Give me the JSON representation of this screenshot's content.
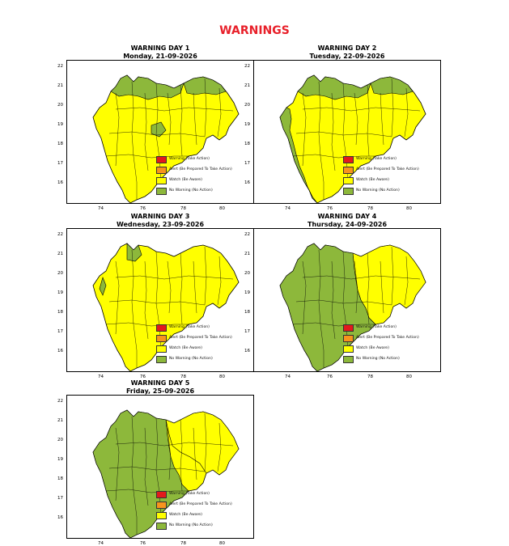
{
  "page_title": "WARNINGS",
  "colors": {
    "title": "#e8202a",
    "warning": "#e31a1c",
    "alert": "#f7941d",
    "watch": "#ffff00",
    "no_warning": "#8db83b"
  },
  "legend": [
    {
      "label": "Warning (Take Action)",
      "color": "#e31a1c"
    },
    {
      "label": "Alert (Be Prepared To Take Action)",
      "color": "#f7941d"
    },
    {
      "label": "Watch (Be Aware)",
      "color": "#ffff00"
    },
    {
      "label": "No Warning (No Action)",
      "color": "#8db83b"
    }
  ],
  "axes": {
    "y_ticks": [
      "22",
      "21",
      "20",
      "19",
      "18",
      "17",
      "16"
    ],
    "x_ticks": [
      "74",
      "76",
      "78",
      "80"
    ]
  },
  "panels": [
    {
      "title": "WARNING DAY 1",
      "date": "Monday, 21-09-2026"
    },
    {
      "title": "WARNING DAY 2",
      "date": "Tuesday, 22-09-2026"
    },
    {
      "title": "WARNING DAY 3",
      "date": "Wednesday, 23-09-2026"
    },
    {
      "title": "WARNING DAY 4",
      "date": "Thursday, 24-09-2026"
    },
    {
      "title": "WARNING DAY 5",
      "date": "Friday, 25-09-2026"
    }
  ]
}
